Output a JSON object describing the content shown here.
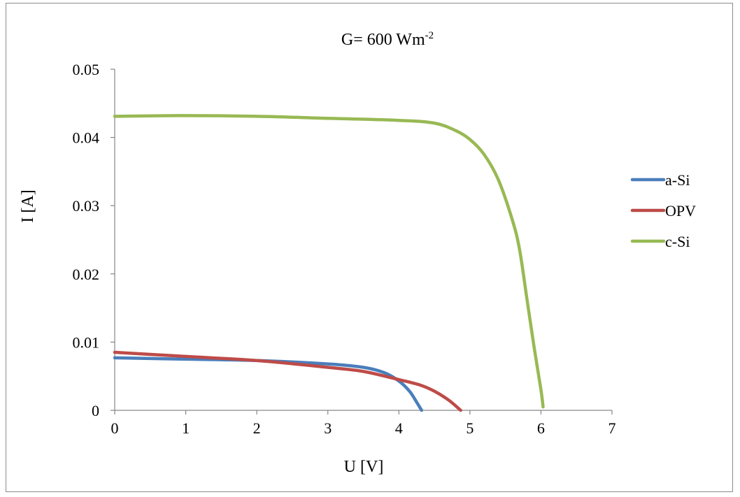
{
  "chart_data": {
    "type": "line",
    "title": "G= 600 Wm",
    "title_sup": "-2",
    "xlabel": "U [V]",
    "ylabel": "I [A]",
    "xlim": [
      0,
      7
    ],
    "ylim": [
      0,
      0.05
    ],
    "x_ticks": [
      "0",
      "1",
      "2",
      "3",
      "4",
      "5",
      "6",
      "7"
    ],
    "y_ticks": [
      "0",
      "0.01",
      "0.02",
      "0.03",
      "0.04",
      "0.05"
    ],
    "grid": false,
    "legend_position": "right",
    "series": [
      {
        "name": "a-Si",
        "color": "#4a7ebb",
        "points": [
          [
            0,
            0.0077
          ],
          [
            1,
            0.0075
          ],
          [
            2,
            0.0073
          ],
          [
            3,
            0.0068
          ],
          [
            3.5,
            0.0063
          ],
          [
            3.8,
            0.0055
          ],
          [
            4.0,
            0.0043
          ],
          [
            4.15,
            0.0028
          ],
          [
            4.25,
            0.0012
          ],
          [
            4.32,
            0
          ]
        ]
      },
      {
        "name": "OPV",
        "color": "#be4b48",
        "points": [
          [
            0,
            0.0085
          ],
          [
            1,
            0.0079
          ],
          [
            2,
            0.0073
          ],
          [
            3,
            0.0063
          ],
          [
            3.5,
            0.0057
          ],
          [
            4.0,
            0.0045
          ],
          [
            4.3,
            0.0037
          ],
          [
            4.5,
            0.0028
          ],
          [
            4.7,
            0.0015
          ],
          [
            4.87,
            0
          ]
        ]
      },
      {
        "name": "c-Si",
        "color": "#98b954",
        "points": [
          [
            0,
            0.0431
          ],
          [
            1,
            0.0432
          ],
          [
            2,
            0.0431
          ],
          [
            3,
            0.0428
          ],
          [
            4,
            0.0425
          ],
          [
            4.5,
            0.0421
          ],
          [
            4.8,
            0.041
          ],
          [
            5.0,
            0.0397
          ],
          [
            5.2,
            0.0375
          ],
          [
            5.4,
            0.0338
          ],
          [
            5.6,
            0.0278
          ],
          [
            5.7,
            0.0235
          ],
          [
            5.8,
            0.0165
          ],
          [
            5.9,
            0.0095
          ],
          [
            6.0,
            0.003
          ],
          [
            6.03,
            0.0005
          ]
        ]
      }
    ]
  }
}
